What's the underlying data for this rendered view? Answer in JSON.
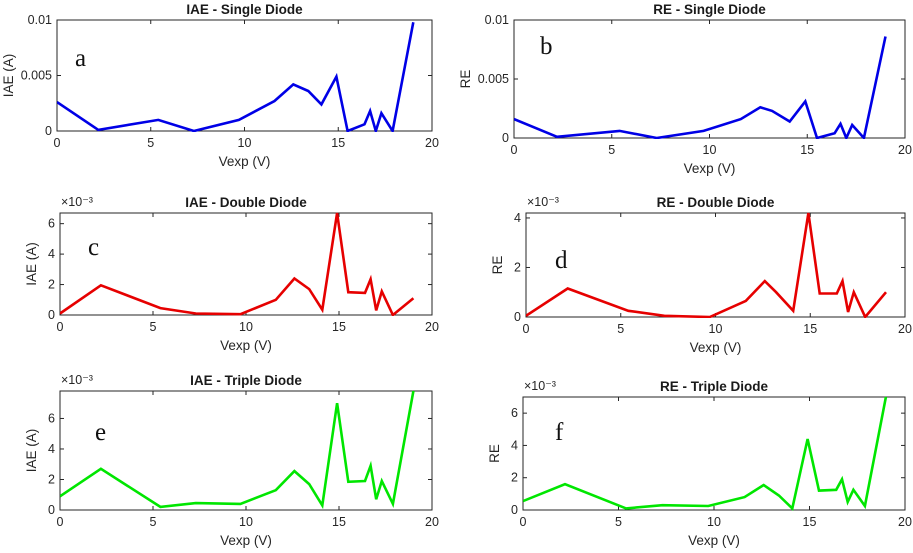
{
  "chart_data": [
    {
      "type": "line",
      "panel_letter": "a",
      "title": "IAE - Single Diode",
      "xlabel": "Vexp (V)",
      "ylabel": "IAE (A)",
      "exponent_label": "",
      "color": "#0000e6",
      "xlim": [
        0,
        20
      ],
      "ylim": [
        0,
        0.01
      ],
      "xticks": [
        0,
        5,
        10,
        15,
        20
      ],
      "xtick_labels": [
        "0",
        "5",
        "10",
        "15",
        "20"
      ],
      "yticks": [
        0,
        0.005,
        0.01
      ],
      "ytick_labels": [
        "0",
        "0.005",
        "0.01"
      ],
      "x": [
        0,
        2.2,
        5.4,
        7.3,
        9.7,
        11.6,
        12.6,
        13.4,
        14.1,
        14.9,
        15.5,
        16.4,
        16.7,
        17.0,
        17.3,
        17.9,
        19.0
      ],
      "y": [
        0.0026,
        0.0001,
        0.001,
        0.0,
        0.001,
        0.0027,
        0.0042,
        0.0036,
        0.0024,
        0.0049,
        0.0,
        0.0006,
        0.0018,
        0.0,
        0.0016,
        0.0,
        0.0098
      ]
    },
    {
      "type": "line",
      "panel_letter": "b",
      "title": "RE - Single Diode",
      "xlabel": "Vexp (V)",
      "ylabel": "RE",
      "exponent_label": "",
      "color": "#0000e6",
      "xlim": [
        0,
        20
      ],
      "ylim": [
        0,
        0.01
      ],
      "xticks": [
        0,
        5,
        10,
        15,
        20
      ],
      "xtick_labels": [
        "0",
        "5",
        "10",
        "15",
        "20"
      ],
      "yticks": [
        0,
        0.005,
        0.01
      ],
      "ytick_labels": [
        "0",
        "0.005",
        "0.01"
      ],
      "x": [
        0,
        2.2,
        5.4,
        7.3,
        9.7,
        11.6,
        12.6,
        13.2,
        14.1,
        14.9,
        15.5,
        16.4,
        16.7,
        17.0,
        17.3,
        17.9,
        19.0
      ],
      "y": [
        0.0016,
        0.0001,
        0.0006,
        0.0,
        0.0006,
        0.0016,
        0.0026,
        0.0023,
        0.0014,
        0.0031,
        0.0,
        0.0004,
        0.0012,
        0.0,
        0.0011,
        0.0,
        0.0086
      ]
    },
    {
      "type": "line",
      "panel_letter": "c",
      "title": "IAE - Double Diode",
      "xlabel": "Vexp (V)",
      "ylabel": "IAE (A)",
      "exponent_label": "×10⁻³",
      "color": "#e60000",
      "xlim": [
        0,
        20
      ],
      "ylim": [
        0,
        6.7
      ],
      "xticks": [
        0,
        5,
        10,
        15,
        20
      ],
      "xtick_labels": [
        "0",
        "5",
        "10",
        "15",
        "20"
      ],
      "yticks": [
        0,
        2,
        4,
        6
      ],
      "ytick_labels": [
        "0",
        "2",
        "4",
        "6"
      ],
      "x": [
        0,
        2.2,
        5.4,
        7.3,
        9.7,
        11.6,
        12.6,
        13.4,
        14.1,
        14.9,
        15.5,
        16.4,
        16.7,
        17.0,
        17.3,
        17.9,
        19.0
      ],
      "y": [
        0.1,
        1.95,
        0.45,
        0.1,
        0.05,
        1.0,
        2.4,
        1.7,
        0.35,
        6.7,
        1.5,
        1.45,
        2.35,
        0.3,
        1.55,
        0.0,
        1.1
      ]
    },
    {
      "type": "line",
      "panel_letter": "d",
      "title": "RE - Double Diode",
      "xlabel": "Vexp (V)",
      "ylabel": "RE",
      "exponent_label": "×10⁻³",
      "color": "#e60000",
      "xlim": [
        0,
        20
      ],
      "ylim": [
        0,
        4.2
      ],
      "xticks": [
        0,
        5,
        10,
        15,
        20
      ],
      "xtick_labels": [
        "0",
        "5",
        "10",
        "15",
        "20"
      ],
      "yticks": [
        0,
        2,
        4
      ],
      "ytick_labels": [
        "0",
        "2",
        "4"
      ],
      "x": [
        0,
        2.2,
        5.4,
        7.3,
        9.7,
        11.6,
        12.6,
        13.2,
        14.1,
        14.9,
        15.5,
        16.4,
        16.7,
        17.0,
        17.3,
        17.9,
        19.0
      ],
      "y": [
        0.05,
        1.15,
        0.25,
        0.05,
        0.0,
        0.65,
        1.45,
        1.0,
        0.25,
        4.2,
        0.95,
        0.95,
        1.45,
        0.2,
        1.0,
        0.0,
        1.0
      ]
    },
    {
      "type": "line",
      "panel_letter": "e",
      "title": "IAE - Triple Diode",
      "xlabel": "Vexp (V)",
      "ylabel": "IAE (A)",
      "exponent_label": "×10⁻³",
      "color": "#00e600",
      "xlim": [
        0,
        20
      ],
      "ylim": [
        0,
        7.8
      ],
      "xticks": [
        0,
        5,
        10,
        15,
        20
      ],
      "xtick_labels": [
        "0",
        "5",
        "10",
        "15",
        "20"
      ],
      "yticks": [
        0,
        2,
        4,
        6
      ],
      "ytick_labels": [
        "0",
        "2",
        "4",
        "6"
      ],
      "x": [
        0,
        2.2,
        5.4,
        7.3,
        9.7,
        11.6,
        12.6,
        13.4,
        14.1,
        14.9,
        15.5,
        16.4,
        16.7,
        17.0,
        17.3,
        17.9,
        19.0
      ],
      "y": [
        0.9,
        2.7,
        0.2,
        0.45,
        0.4,
        1.3,
        2.55,
        1.7,
        0.3,
        7.0,
        1.85,
        1.9,
        2.9,
        0.7,
        1.9,
        0.4,
        7.8
      ]
    },
    {
      "type": "line",
      "panel_letter": "f",
      "title": "RE - Triple Diode",
      "xlabel": "Vexp (V)",
      "ylabel": "RE",
      "exponent_label": "×10⁻³",
      "color": "#00e600",
      "xlim": [
        0,
        20
      ],
      "ylim": [
        0,
        7.0
      ],
      "xticks": [
        0,
        5,
        10,
        15,
        20
      ],
      "xtick_labels": [
        "0",
        "5",
        "10",
        "15",
        "20"
      ],
      "yticks": [
        0,
        2,
        4,
        6
      ],
      "ytick_labels": [
        "0",
        "2",
        "4",
        "6"
      ],
      "x": [
        0,
        2.2,
        5.4,
        7.3,
        9.7,
        11.6,
        12.6,
        13.4,
        14.1,
        14.9,
        15.5,
        16.4,
        16.7,
        17.0,
        17.3,
        17.9,
        19.0
      ],
      "y": [
        0.55,
        1.6,
        0.1,
        0.3,
        0.25,
        0.8,
        1.55,
        0.9,
        0.1,
        4.4,
        1.2,
        1.25,
        1.9,
        0.5,
        1.25,
        0.25,
        7.0
      ]
    }
  ]
}
